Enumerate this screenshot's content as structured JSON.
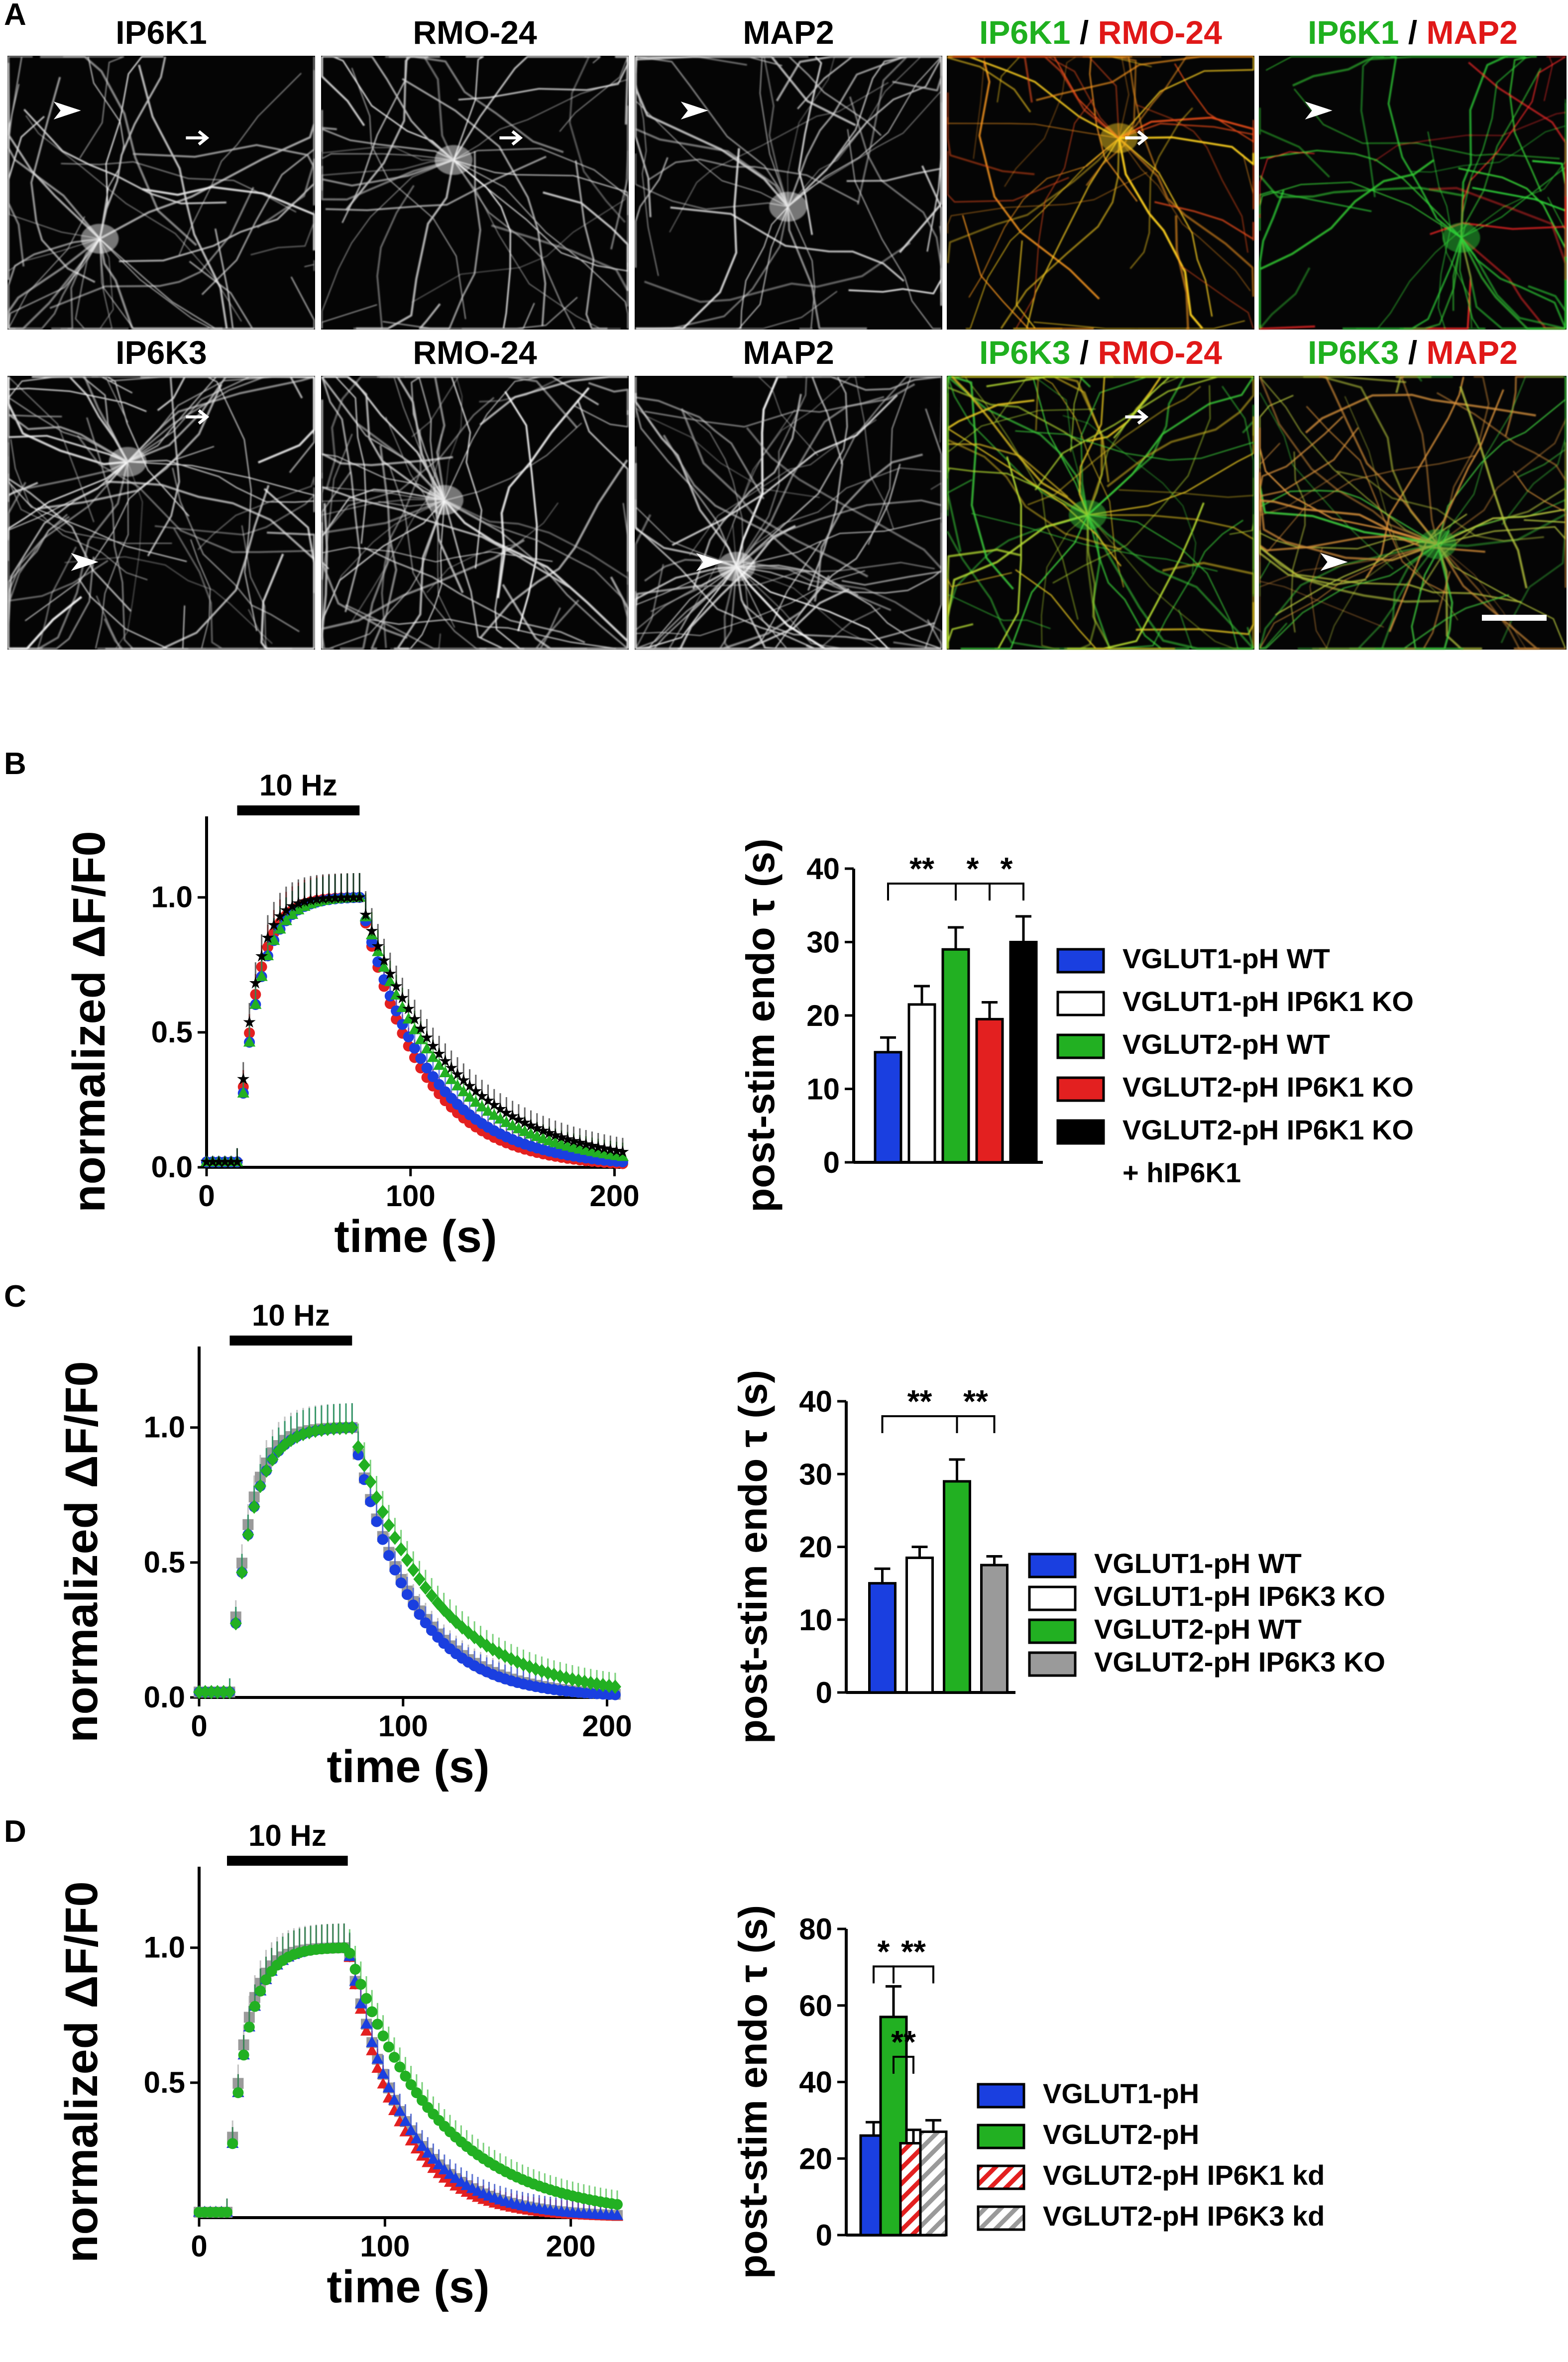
{
  "panel_labels": [
    "A",
    "B",
    "C",
    "D"
  ],
  "colors": {
    "blue": "#1a3fe0",
    "green": "#22b022",
    "red": "#e32020",
    "black": "#000000",
    "gray": "#9a9a9a",
    "white": "#ffffff",
    "dark": "#0a0a0a"
  },
  "micrographs": {
    "row1": [
      {
        "title": [
          {
            "t": "IP6K1",
            "c": "#000000"
          }
        ],
        "tint": "gray",
        "marks": [
          "arrowhead",
          "arrow"
        ]
      },
      {
        "title": [
          {
            "t": "RMO-24",
            "c": "#000000"
          }
        ],
        "tint": "gray",
        "marks": [
          "arrow"
        ]
      },
      {
        "title": [
          {
            "t": "MAP2",
            "c": "#000000"
          }
        ],
        "tint": "gray",
        "marks": [
          "arrowhead"
        ]
      },
      {
        "title": [
          {
            "t": "IP6K1",
            "c": "#1fb01f"
          },
          {
            "t": " / ",
            "c": "#000000"
          },
          {
            "t": "RMO-24",
            "c": "#e01818"
          }
        ],
        "tint": "yellow",
        "marks": [
          "arrow"
        ]
      },
      {
        "title": [
          {
            "t": "IP6K1",
            "c": "#1fb01f"
          },
          {
            "t": " / ",
            "c": "#000000"
          },
          {
            "t": "MAP2",
            "c": "#e01818"
          }
        ],
        "tint": "redgreen",
        "marks": [
          "arrowhead"
        ]
      }
    ],
    "row2": [
      {
        "title": [
          {
            "t": "IP6K3",
            "c": "#000000"
          }
        ],
        "tint": "gray",
        "marks": [
          "arrow",
          "arrowhead"
        ]
      },
      {
        "title": [
          {
            "t": "RMO-24",
            "c": "#000000"
          }
        ],
        "tint": "gray",
        "marks": []
      },
      {
        "title": [
          {
            "t": "MAP2",
            "c": "#000000"
          }
        ],
        "tint": "gray",
        "marks": [
          "arrowhead"
        ]
      },
      {
        "title": [
          {
            "t": "IP6K3",
            "c": "#1fb01f"
          },
          {
            "t": " / ",
            "c": "#000000"
          },
          {
            "t": "RMO-24",
            "c": "#e01818"
          }
        ],
        "tint": "green",
        "marks": [
          "arrow"
        ]
      },
      {
        "title": [
          {
            "t": "IP6K3",
            "c": "#1fb01f"
          },
          {
            "t": " / ",
            "c": "#000000"
          },
          {
            "t": "MAP2",
            "c": "#e01818"
          }
        ],
        "tint": "greenred",
        "marks": [
          "arrowhead",
          "scalebar"
        ]
      }
    ]
  },
  "chart_data": [
    {
      "panel": "B",
      "type": "line",
      "xlabel": "time (s)",
      "ylabel": "normalized ΔF/F0",
      "xlim": [
        0,
        205
      ],
      "ylim": [
        0,
        1.3
      ],
      "xticks": [
        0,
        100,
        200
      ],
      "yticks": [
        0.0,
        0.5,
        1.0
      ],
      "stimulus": {
        "label": "10 Hz",
        "x": [
          15,
          75
        ]
      },
      "series": [
        {
          "color": "red",
          "marker": "circle",
          "rise": 0.9,
          "decay": 30
        },
        {
          "color": "blue",
          "marker": "circle",
          "rise": 1.0,
          "decay": 33
        },
        {
          "color": "green",
          "marker": "triangle",
          "rise": 1.0,
          "decay": 40
        },
        {
          "color": "black",
          "marker": "star",
          "rise": 0.8,
          "decay": 45
        }
      ]
    },
    {
      "panel": "B",
      "type": "bar",
      "ylabel": "post-stim endo τ (s)",
      "ylim": [
        0,
        40
      ],
      "yticks": [
        0,
        10,
        20,
        30,
        40
      ],
      "bars": [
        {
          "name": "VGLUT1-pH WT",
          "value": 15,
          "err": 2,
          "fill": "blue",
          "pattern": "solid"
        },
        {
          "name": "VGLUT1-pH IP6K1 KO",
          "value": 21.5,
          "err": 2.5,
          "fill": "white",
          "pattern": "solid"
        },
        {
          "name": "VGLUT2-pH WT",
          "value": 29,
          "err": 3,
          "fill": "green",
          "pattern": "solid"
        },
        {
          "name": "VGLUT2-pH IP6K1 KO",
          "value": 19.5,
          "err": 2.3,
          "fill": "red",
          "pattern": "solid"
        },
        {
          "name": "VGLUT2-pH IP6K1 KO",
          "value": 30,
          "err": 3.5,
          "fill": "black",
          "pattern": "solid"
        }
      ],
      "legend": [
        "VGLUT1-pH WT",
        "VGLUT1-pH IP6K1 KO",
        "VGLUT2-pH WT",
        "VGLUT2-pH IP6K1 KO",
        "VGLUT2-pH IP6K1 KO"
      ],
      "legend_extra": "+ hIP6K1",
      "sig": [
        {
          "from": 0,
          "to": 2,
          "label": "**"
        },
        {
          "from": 2,
          "to": 3,
          "label": "*"
        },
        {
          "from": 3,
          "to": 4,
          "label": "*"
        }
      ]
    },
    {
      "panel": "C",
      "type": "line",
      "xlabel": "time (s)",
      "ylabel": "normalized ΔF/F0",
      "xlim": [
        0,
        205
      ],
      "ylim": [
        0,
        1.3
      ],
      "xticks": [
        0,
        100,
        200
      ],
      "yticks": [
        0.0,
        0.5,
        1.0
      ],
      "stimulus": {
        "label": "10 Hz",
        "x": [
          15,
          75
        ]
      },
      "series": [
        {
          "color": "gray",
          "marker": "square",
          "rise": 0.9,
          "decay": 29
        },
        {
          "color": "blue",
          "marker": "circle",
          "rise": 1.0,
          "decay": 28
        },
        {
          "color": "green",
          "marker": "diamond",
          "rise": 1.0,
          "decay": 40
        }
      ]
    },
    {
      "panel": "C",
      "type": "bar",
      "ylabel": "post-stim endo τ (s)",
      "ylim": [
        0,
        40
      ],
      "yticks": [
        0,
        10,
        20,
        30,
        40
      ],
      "bars": [
        {
          "name": "VGLUT1-pH WT",
          "value": 15,
          "err": 2,
          "fill": "blue",
          "pattern": "solid"
        },
        {
          "name": "VGLUT1-pH IP6K3 KO",
          "value": 18.5,
          "err": 1.5,
          "fill": "white",
          "pattern": "solid"
        },
        {
          "name": "VGLUT2-pH WT",
          "value": 29,
          "err": 3,
          "fill": "green",
          "pattern": "solid"
        },
        {
          "name": "VGLUT2-pH IP6K3 KO",
          "value": 17.5,
          "err": 1.2,
          "fill": "gray",
          "pattern": "solid"
        }
      ],
      "legend": [
        "VGLUT1-pH WT",
        "VGLUT1-pH IP6K3 KO",
        "VGLUT2-pH WT",
        "VGLUT2-pH IP6K3 KO"
      ],
      "sig": [
        {
          "from": 0,
          "to": 2,
          "label": "**"
        },
        {
          "from": 2,
          "to": 3,
          "label": "**"
        }
      ]
    },
    {
      "panel": "D",
      "type": "line",
      "xlabel": "time (s)",
      "ylabel": "normalized ΔF/F0",
      "xlim": [
        0,
        225
      ],
      "ylim": [
        0,
        1.3
      ],
      "xticks": [
        0,
        100,
        200
      ],
      "yticks": [
        0.5,
        1.0
      ],
      "stimulus": {
        "label": "10 Hz",
        "x": [
          15,
          80
        ]
      },
      "series": [
        {
          "color": "gray",
          "marker": "square",
          "rise": 0.9,
          "decay": 30
        },
        {
          "color": "red",
          "marker": "triangle",
          "rise": 1.0,
          "decay": 27
        },
        {
          "color": "blue",
          "marker": "triangle",
          "rise": 1.0,
          "decay": 30
        },
        {
          "color": "green",
          "marker": "circle",
          "rise": 1.0,
          "decay": 48
        }
      ]
    },
    {
      "panel": "D",
      "type": "bar",
      "ylabel": "post-stim endo τ (s)",
      "ylim": [
        0,
        80
      ],
      "yticks": [
        0,
        20,
        40,
        60,
        80
      ],
      "bars": [
        {
          "name": "VGLUT1-pH",
          "value": 26,
          "err": 3.5,
          "fill": "blue",
          "pattern": "solid"
        },
        {
          "name": "VGLUT2-pH",
          "value": 57,
          "err": 8,
          "fill": "green",
          "pattern": "solid"
        },
        {
          "name": "VGLUT2-pH IP6K1 kd",
          "value": 24,
          "err": 3.5,
          "fill": "red",
          "pattern": "hatch"
        },
        {
          "name": "VGLUT2-pH IP6K3 kd",
          "value": 27,
          "err": 3,
          "fill": "gray",
          "pattern": "hatch"
        }
      ],
      "legend": [
        "VGLUT1-pH",
        "VGLUT2-pH",
        "VGLUT2-pH IP6K1 kd",
        "VGLUT2-pH IP6K3 kd"
      ],
      "sig": [
        {
          "from": 0,
          "to": 1,
          "label": "*"
        },
        {
          "from": 1,
          "to": 3,
          "label": "**"
        },
        {
          "from": 1,
          "to": 2,
          "label": "**"
        }
      ]
    }
  ]
}
